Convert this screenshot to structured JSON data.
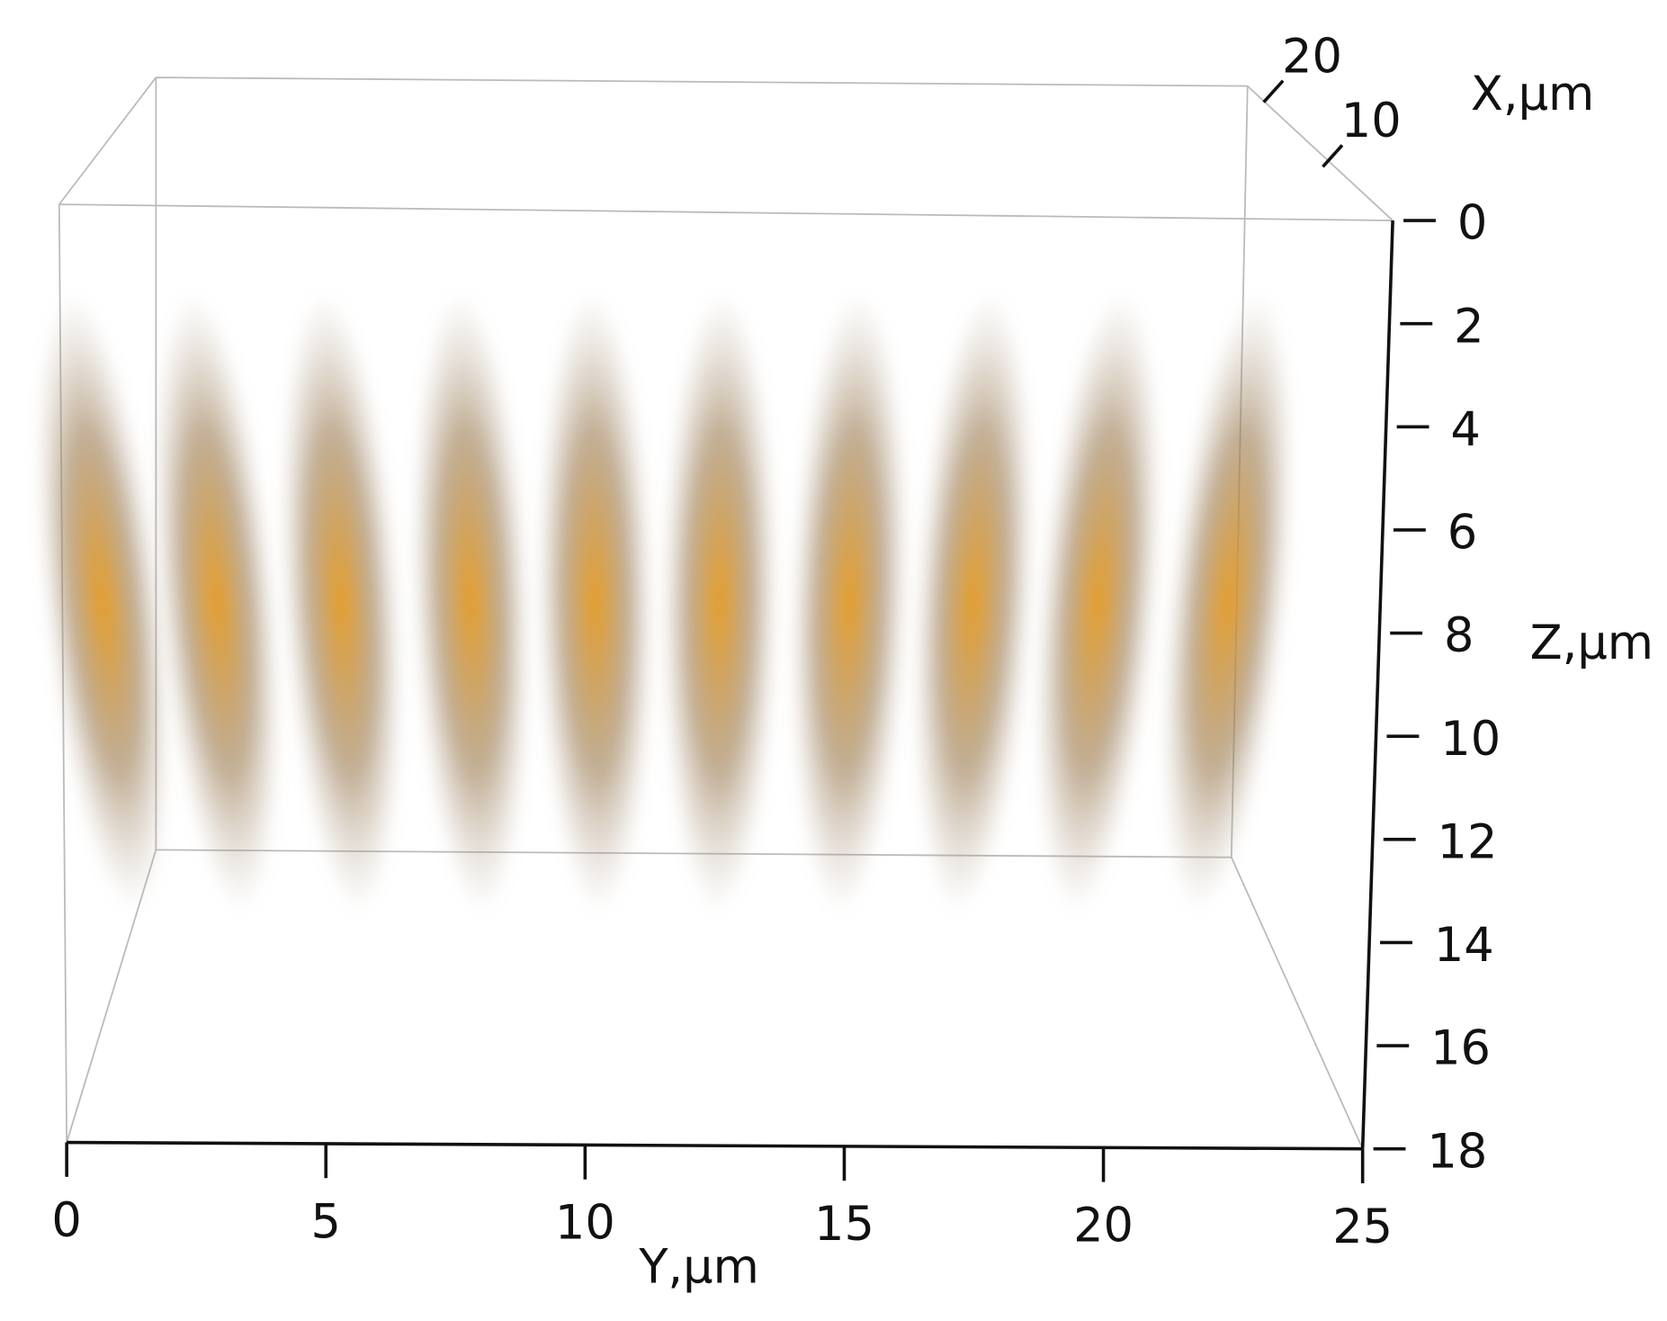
{
  "chart_data": {
    "type": "volume",
    "x_label": "X,µm",
    "y_label": "Y,µm",
    "z_label": "Z,µm",
    "xlim": [
      0,
      20
    ],
    "xticks": [
      10,
      20
    ],
    "ylim": [
      0,
      25
    ],
    "yticks": [
      0,
      5,
      10,
      15,
      20,
      25
    ],
    "zlim": [
      0,
      18
    ],
    "zticks": [
      0,
      2,
      4,
      6,
      8,
      10,
      12,
      14,
      16,
      18
    ],
    "color": "#e8a030",
    "blobs": {
      "y": [
        0.7,
        2.9,
        5.3,
        7.8,
        10.2,
        12.6,
        15.1,
        17.5,
        19.9,
        22.4
      ],
      "z": [
        7.4,
        7.4,
        7.4,
        7.4,
        7.4,
        7.4,
        7.4,
        7.4,
        7.4,
        7.4
      ]
    }
  }
}
